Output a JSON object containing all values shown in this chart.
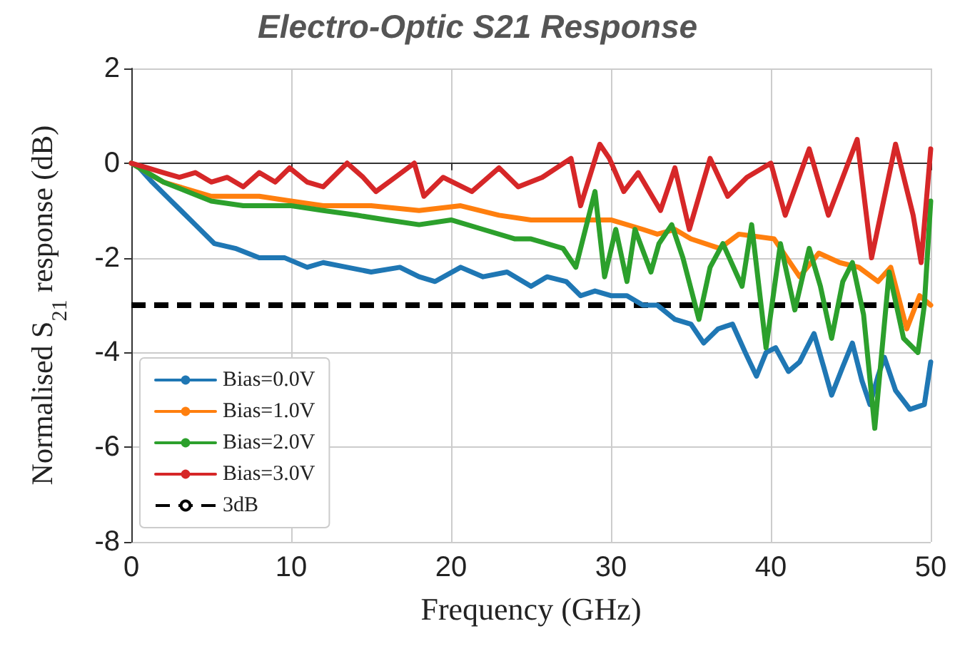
{
  "chart_data": {
    "type": "line",
    "title": "Electro-Optic S21 Response",
    "xlabel": "Frequency (GHz)",
    "ylabel": "Normalised S$_{21}$ response (dB)",
    "xlim": [
      0,
      50
    ],
    "xticks": [
      0,
      10,
      20,
      30,
      40,
      50
    ],
    "ylim": [
      -8,
      2
    ],
    "yticks": [
      -8,
      -6,
      -4,
      -2,
      0,
      2
    ],
    "grid": true,
    "legend": "lower left",
    "line_style": "solid",
    "marker": "none",
    "series": [
      {
        "name": "Bias=0.0V",
        "color": "#1f77b4",
        "x": [
          0,
          0.5,
          1.3,
          2.5,
          4,
          5.2,
          6.5,
          8,
          9.6,
          11,
          12,
          13.5,
          15,
          16.8,
          18,
          19,
          20.6,
          22,
          23.5,
          25,
          26,
          27.2,
          28.1,
          29,
          30,
          31,
          32,
          32.9,
          34,
          35,
          35.8,
          36.7,
          37.6,
          38.4,
          39.1,
          39.7,
          40.3,
          41.1,
          41.8,
          42.7,
          43.3,
          43.8,
          44.5,
          45.1,
          45.7,
          46.2,
          46.7,
          47.1,
          47.8,
          48.7,
          49.6,
          50
        ],
        "values": [
          0,
          -0.1,
          -0.4,
          -0.8,
          -1.3,
          -1.7,
          -1.8,
          -2.0,
          -2.0,
          -2.2,
          -2.1,
          -2.2,
          -2.3,
          -2.2,
          -2.4,
          -2.5,
          -2.2,
          -2.4,
          -2.3,
          -2.6,
          -2.4,
          -2.5,
          -2.8,
          -2.7,
          -2.8,
          -2.8,
          -3.0,
          -3.0,
          -3.3,
          -3.4,
          -3.8,
          -3.5,
          -3.4,
          -4.0,
          -4.5,
          -4.0,
          -3.9,
          -4.4,
          -4.2,
          -3.6,
          -4.3,
          -4.9,
          -4.3,
          -3.8,
          -4.6,
          -5.1,
          -4.5,
          -4.1,
          -4.8,
          -5.2,
          -5.1,
          -4.2
        ]
      },
      {
        "name": "Bias=1.0V",
        "color": "#ff7f0e",
        "x": [
          0,
          2,
          5,
          8,
          10,
          12,
          15,
          18,
          20.6,
          23,
          25,
          28,
          30,
          32,
          32.9,
          34,
          35,
          36.8,
          38,
          40.2,
          41,
          41.8,
          43,
          44.3,
          45.5,
          46.7,
          47.5,
          48.5,
          49.3,
          50
        ],
        "values": [
          0,
          -0.4,
          -0.7,
          -0.7,
          -0.8,
          -0.9,
          -0.9,
          -1.0,
          -0.9,
          -1.1,
          -1.2,
          -1.2,
          -1.2,
          -1.4,
          -1.5,
          -1.4,
          -1.6,
          -1.8,
          -1.5,
          -1.6,
          -2.0,
          -2.4,
          -1.9,
          -2.1,
          -2.2,
          -2.5,
          -2.2,
          -3.5,
          -2.8,
          -3.0
        ]
      },
      {
        "name": "Bias=2.0V",
        "color": "#2ca02c",
        "x": [
          0,
          2,
          5,
          7,
          10,
          12,
          14.1,
          16,
          18,
          20,
          22,
          24,
          25,
          27,
          27.8,
          29,
          29.6,
          30.3,
          31,
          31.5,
          32.5,
          33,
          33.8,
          34.5,
          35.5,
          36.2,
          37,
          38.2,
          38.8,
          39.7,
          40.6,
          41.5,
          42.4,
          43.1,
          43.8,
          44.5,
          45.1,
          45.8,
          46.5,
          47.4,
          48.3,
          49.2,
          49.6,
          50
        ],
        "values": [
          0,
          -0.4,
          -0.8,
          -0.9,
          -0.9,
          -1.0,
          -1.1,
          -1.2,
          -1.3,
          -1.2,
          -1.4,
          -1.6,
          -1.6,
          -1.8,
          -2.2,
          -0.6,
          -2.4,
          -1.4,
          -2.5,
          -1.4,
          -2.3,
          -1.7,
          -1.3,
          -2.0,
          -3.3,
          -2.2,
          -1.7,
          -2.6,
          -1.3,
          -3.9,
          -1.7,
          -3.1,
          -1.8,
          -2.6,
          -3.7,
          -2.5,
          -2.1,
          -3.2,
          -5.6,
          -2.3,
          -3.7,
          -4.0,
          -3.0,
          -0.8
        ]
      },
      {
        "name": "Bias=3.0V",
        "color": "#d62728",
        "x": [
          0,
          1,
          2,
          3,
          4,
          5,
          6,
          7,
          8,
          9,
          9.9,
          11,
          12,
          13.5,
          14.5,
          15.3,
          16.5,
          17.7,
          18.3,
          19.5,
          21.3,
          23,
          24.2,
          25.7,
          27.5,
          28.1,
          29.3,
          29.9,
          30.8,
          31.7,
          33.1,
          34,
          34.9,
          36.2,
          37.3,
          38.5,
          40,
          40.9,
          42.4,
          43.6,
          45.4,
          46.3,
          47.8,
          48.9,
          49.4,
          50
        ],
        "values": [
          0,
          -0.1,
          -0.2,
          -0.3,
          -0.2,
          -0.4,
          -0.3,
          -0.5,
          -0.2,
          -0.4,
          -0.1,
          -0.4,
          -0.5,
          0,
          -0.3,
          -0.6,
          -0.3,
          0,
          -0.7,
          -0.3,
          -0.6,
          -0.1,
          -0.5,
          -0.3,
          0.1,
          -0.9,
          0.4,
          0.1,
          -0.6,
          -0.2,
          -1.0,
          -0.1,
          -1.4,
          0.1,
          -0.7,
          -0.3,
          0,
          -1.1,
          0.3,
          -1.1,
          0.5,
          -2.0,
          0.4,
          -1.1,
          -2.1,
          0.3
        ]
      }
    ],
    "ref_lines": [
      {
        "axis": "y",
        "value": -3,
        "label": "3dB",
        "color": "#000000",
        "line_style": "dashed"
      }
    ]
  }
}
